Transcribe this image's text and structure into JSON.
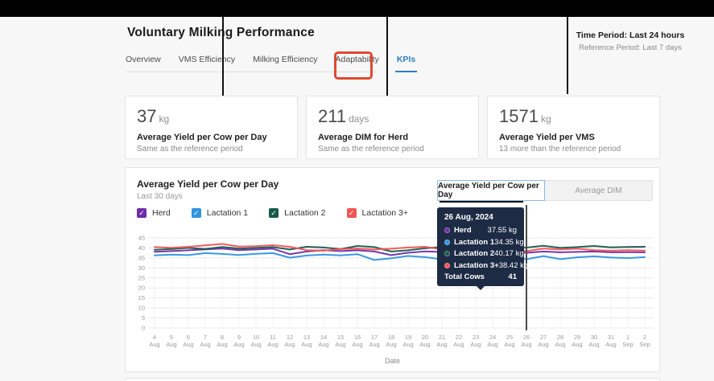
{
  "header": {
    "title": "Voluntary Milking Performance",
    "tabs": [
      {
        "label": "Overview",
        "active": false
      },
      {
        "label": "VMS Efficiency",
        "active": false
      },
      {
        "label": "Milking Efficiency",
        "active": false
      },
      {
        "label": "Adaptability",
        "active": false
      },
      {
        "label": "KPIs",
        "active": true
      }
    ],
    "time_period": {
      "primary": "Time Period: Last 24 hours",
      "secondary": "Reference Period: Last 7 days"
    }
  },
  "kpi_cards": [
    {
      "value": "37",
      "unit": "kg",
      "title": "Average Yield per Cow per Day",
      "subtitle": "Same as the reference period"
    },
    {
      "value": "211",
      "unit": "days",
      "title": "Average DIM for Herd",
      "subtitle": "Same as the reference period"
    },
    {
      "value": "1571",
      "unit": "kg",
      "title": "Average Yield per VMS",
      "subtitle": "13 more than the reference period"
    }
  ],
  "chart_section": {
    "title": "Average Yield per Cow per Day",
    "subtitle": "Last 30 days",
    "toggle": [
      {
        "label": "Average Yield per Cow per Day",
        "active": true
      },
      {
        "label": "Average DIM",
        "active": false
      }
    ],
    "legend": [
      {
        "label": "Herd",
        "color": "#6f2da8",
        "checked": true
      },
      {
        "label": "Lactation 1",
        "color": "#3094e0",
        "checked": true
      },
      {
        "label": "Lactation 2",
        "color": "#175a4c",
        "checked": true
      },
      {
        "label": "Lactation 3+",
        "color": "#f15454",
        "checked": true
      }
    ],
    "tooltip": {
      "title": "26 Aug, 2024",
      "rows": [
        {
          "label": "Herd",
          "value": "37.55 kg",
          "color": "#6f2da8"
        },
        {
          "label": "Lactation 1",
          "value": "34.35 kg",
          "color": "#3094e0"
        },
        {
          "label": "Lactation 2",
          "value": "40.17 kg",
          "color": "#175a4c"
        },
        {
          "label": "Lactation 3+",
          "value": "38.42 kg",
          "color": "#f15454"
        }
      ],
      "footer": {
        "label": "Total Cows",
        "value": "41"
      }
    },
    "xlabel": "Date",
    "checkmark": "✓"
  },
  "chart_data": {
    "type": "line",
    "x": [
      "4 Aug",
      "5 Aug",
      "6 Aug",
      "7 Aug",
      "8 Aug",
      "9 Aug",
      "10 Aug",
      "11 Aug",
      "12 Aug",
      "13 Aug",
      "14 Aug",
      "15 Aug",
      "16 Aug",
      "17 Aug",
      "18 Aug",
      "19 Aug",
      "20 Aug",
      "21 Aug",
      "22 Aug",
      "23 Aug",
      "24 Aug",
      "25 Aug",
      "26 Aug",
      "27 Aug",
      "28 Aug",
      "29 Aug",
      "30 Aug",
      "31 Aug",
      "1 Sep",
      "2 Sep"
    ],
    "series": [
      {
        "name": "Herd",
        "color": "#6f2da8",
        "values": [
          38.1,
          38.4,
          38.8,
          39.3,
          39.7,
          38.9,
          39.2,
          39.6,
          36.9,
          38.2,
          38.9,
          38.4,
          38.8,
          38.2,
          36.4,
          37.6,
          38.3,
          38.0,
          37.6,
          38.1,
          38.4,
          37.9,
          37.55,
          38.2,
          37.8,
          38.0,
          38.2,
          37.8,
          37.9,
          37.8
        ]
      },
      {
        "name": "Lactation 1",
        "color": "#3094e0",
        "values": [
          36.3,
          36.7,
          36.4,
          37.4,
          37.0,
          36.5,
          37.1,
          37.4,
          35.1,
          36.2,
          36.7,
          36.3,
          36.9,
          34.0,
          34.8,
          36.0,
          35.4,
          34.3,
          35.2,
          36.1,
          36.4,
          34.9,
          34.35,
          35.9,
          34.4,
          35.3,
          35.8,
          35.2,
          34.9,
          35.4
        ]
      },
      {
        "name": "Lactation 2",
        "color": "#175a4c",
        "values": [
          39.1,
          39.4,
          40.0,
          39.5,
          40.5,
          39.7,
          40.0,
          40.4,
          39.2,
          40.6,
          40.2,
          39.4,
          41.0,
          40.4,
          38.2,
          38.8,
          39.8,
          40.5,
          39.7,
          39.5,
          40.6,
          39.8,
          40.17,
          41.1,
          40.0,
          40.4,
          41.0,
          40.3,
          40.5,
          40.6
        ]
      },
      {
        "name": "Lactation 3+",
        "color": "#f15454",
        "values": [
          40.4,
          40.1,
          40.6,
          41.3,
          42.0,
          40.7,
          40.9,
          41.4,
          40.6,
          38.9,
          38.6,
          39.4,
          39.7,
          39.2,
          39.6,
          40.2,
          40.6,
          39.3,
          38.3,
          39.9,
          39.5,
          38.9,
          38.42,
          39.7,
          39.2,
          39.6,
          38.9,
          38.6,
          38.9,
          38.7
        ]
      }
    ],
    "ylim": [
      0,
      45
    ],
    "yticks": [
      0,
      5,
      10,
      15,
      20,
      25,
      30,
      35,
      40,
      45
    ],
    "grid": true,
    "legend_position": "top-left",
    "highlight_x": "26 Aug",
    "xlabel": "Date",
    "title": "Average Yield per Cow per Day"
  }
}
